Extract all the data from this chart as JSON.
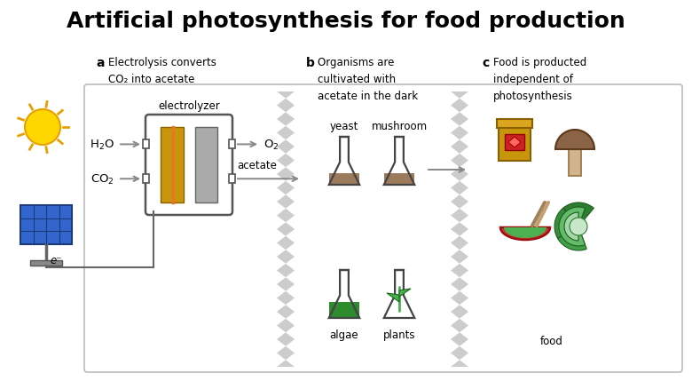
{
  "title": "Artificial photosynthesis for food production",
  "title_fontsize": 18,
  "title_fontweight": "bold",
  "background_color": "#ffffff",
  "label_a": "a",
  "label_b": "b",
  "label_c": "c",
  "text_a": "Electrolysis converts\nCO₂ into acetate",
  "text_b": "Organisms are\ncultivated with\nacetate in the dark",
  "text_c": "Food is producted\nindependent of\nphotosynthesis",
  "electrolyzer_label": "electrolyzer",
  "h2o_label": "H₂O",
  "co2_label": "CO₂",
  "o2_label": "O₂",
  "acetate_label": "acetate",
  "eminus_label": "e⁻",
  "yeast_label": "yeast",
  "mushroom_label": "mushroom",
  "algae_label": "algae",
  "plants_label": "plants",
  "food_label": "food",
  "colors": {
    "gold": "#C8960C",
    "gray_electrode": "#AAAAAA",
    "orange_line": "#E87722",
    "green_algae": "#2E8B2E",
    "brown_yeast": "#9B7B5B",
    "solar_blue": "#3366CC",
    "solar_dark": "#1A3A7A",
    "solar_cell": "#4477DD",
    "arrow_gray": "#888888",
    "zigzag_color": "#CCCCCC",
    "red_label": "#CC2222",
    "jar_body": "#C8960C",
    "jar_lid": "#DAA520",
    "mushroom_cap": "#8B6347",
    "mushroom_stem": "#D2B48C",
    "green_veg": "#4CAF50",
    "red_bowl": "#CC3333",
    "lettuce_dark": "#388E3C",
    "lettuce_light": "#81C784",
    "plant_green": "#4CAF50",
    "sun_yellow": "#FFD700",
    "sun_outline": "#E8A000",
    "panel_border": "#BBBBBB",
    "wire_color": "#666666"
  }
}
